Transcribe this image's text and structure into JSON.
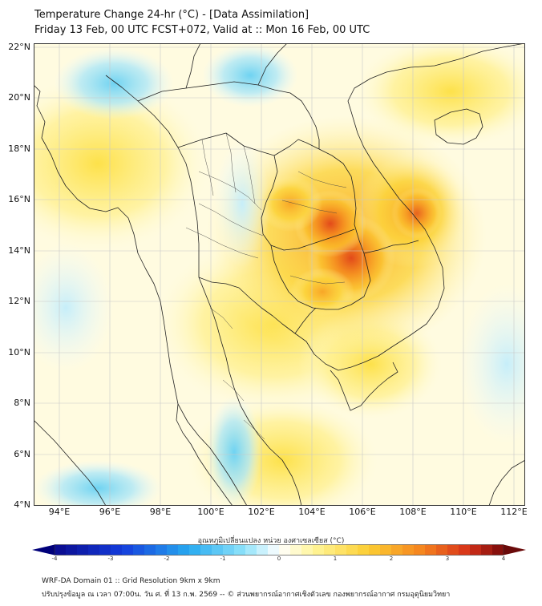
{
  "header": {
    "title_line1": "Temperature Change 24-hr (°C) - [Data Assimilation]",
    "title_line2": "Friday 13 Feb, 00 UTC FCST+072, Valid at :: Mon 16 Feb, 00 UTC"
  },
  "map": {
    "variable": "Temperature Change 24-hr",
    "units": "°C",
    "lat_ticks": [
      "22°N",
      "20°N",
      "18°N",
      "16°N",
      "14°N",
      "12°N",
      "10°N",
      "8°N",
      "6°N",
      "4°N"
    ],
    "lon_ticks": [
      "94°E",
      "96°E",
      "98°E",
      "100°E",
      "102°E",
      "104°E",
      "106°E",
      "108°E",
      "110°E",
      "112°E"
    ],
    "lat_range": [
      4,
      22.2
    ],
    "lon_range": [
      93,
      112.5
    ],
    "warm_spots": [
      {
        "lon": 105.3,
        "lat": 13.6,
        "value": 2.8
      },
      {
        "lon": 104.9,
        "lat": 15.0,
        "value": 2.6
      },
      {
        "lon": 108.2,
        "lat": 15.5,
        "value": 2.1
      },
      {
        "lon": 103.4,
        "lat": 15.6,
        "value": 1.8
      },
      {
        "lon": 96.8,
        "lat": 17.8,
        "value": 0.8
      },
      {
        "lon": 101.5,
        "lat": 5.8,
        "value": 1.0
      }
    ],
    "cool_spots": [
      {
        "lon": 96.5,
        "lat": 20.7,
        "value": -0.8
      },
      {
        "lon": 101.8,
        "lat": 21.2,
        "value": -0.7
      },
      {
        "lon": 96.0,
        "lat": 4.6,
        "value": -0.9
      },
      {
        "lon": 100.0,
        "lat": 6.6,
        "value": -0.8
      }
    ]
  },
  "colorbar": {
    "title": "อุณหภูมิเปลี่ยนแปลง หน่วย องศาเซลเซียส (°C)",
    "min": -4,
    "max": 4,
    "tick_labels": [
      "-4",
      "-3",
      "-2",
      "-1",
      "0",
      "1",
      "2",
      "3",
      "4"
    ]
  },
  "footer": {
    "line1": "WRF-DA Domain 01 :: Grid Resolution 9km x 9km",
    "line2": "ปรับปรุงข้อมูล ณ เวลา 07:00น. วัน ศ. ที่ 13 ก.พ. 2569 -- © ส่วนพยากรณ์อากาศเชิงตัวเลข กองพยากรณ์อากาศ กรมอุตุนิยมวิทยา"
  }
}
